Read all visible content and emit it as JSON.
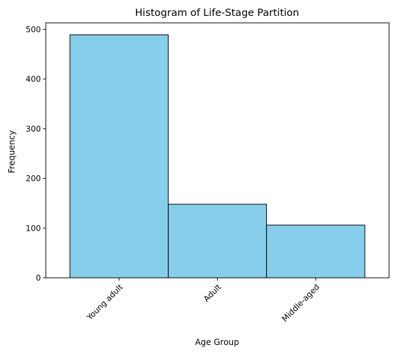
{
  "chart_data": {
    "type": "bar",
    "title": "Histogram of Life-Stage Partition",
    "xlabel": "Age Group",
    "ylabel": "Frequency",
    "categories": [
      "Young adult",
      "Adult",
      "Middle-aged"
    ],
    "values": [
      489,
      148,
      106
    ],
    "ylim": [
      0,
      513
    ],
    "yticks": [
      0,
      100,
      200,
      300,
      400,
      500
    ],
    "xtick_rotation_deg": -45,
    "grid": false,
    "bar_color": "#87CEEB",
    "edge_color": "#000000"
  }
}
